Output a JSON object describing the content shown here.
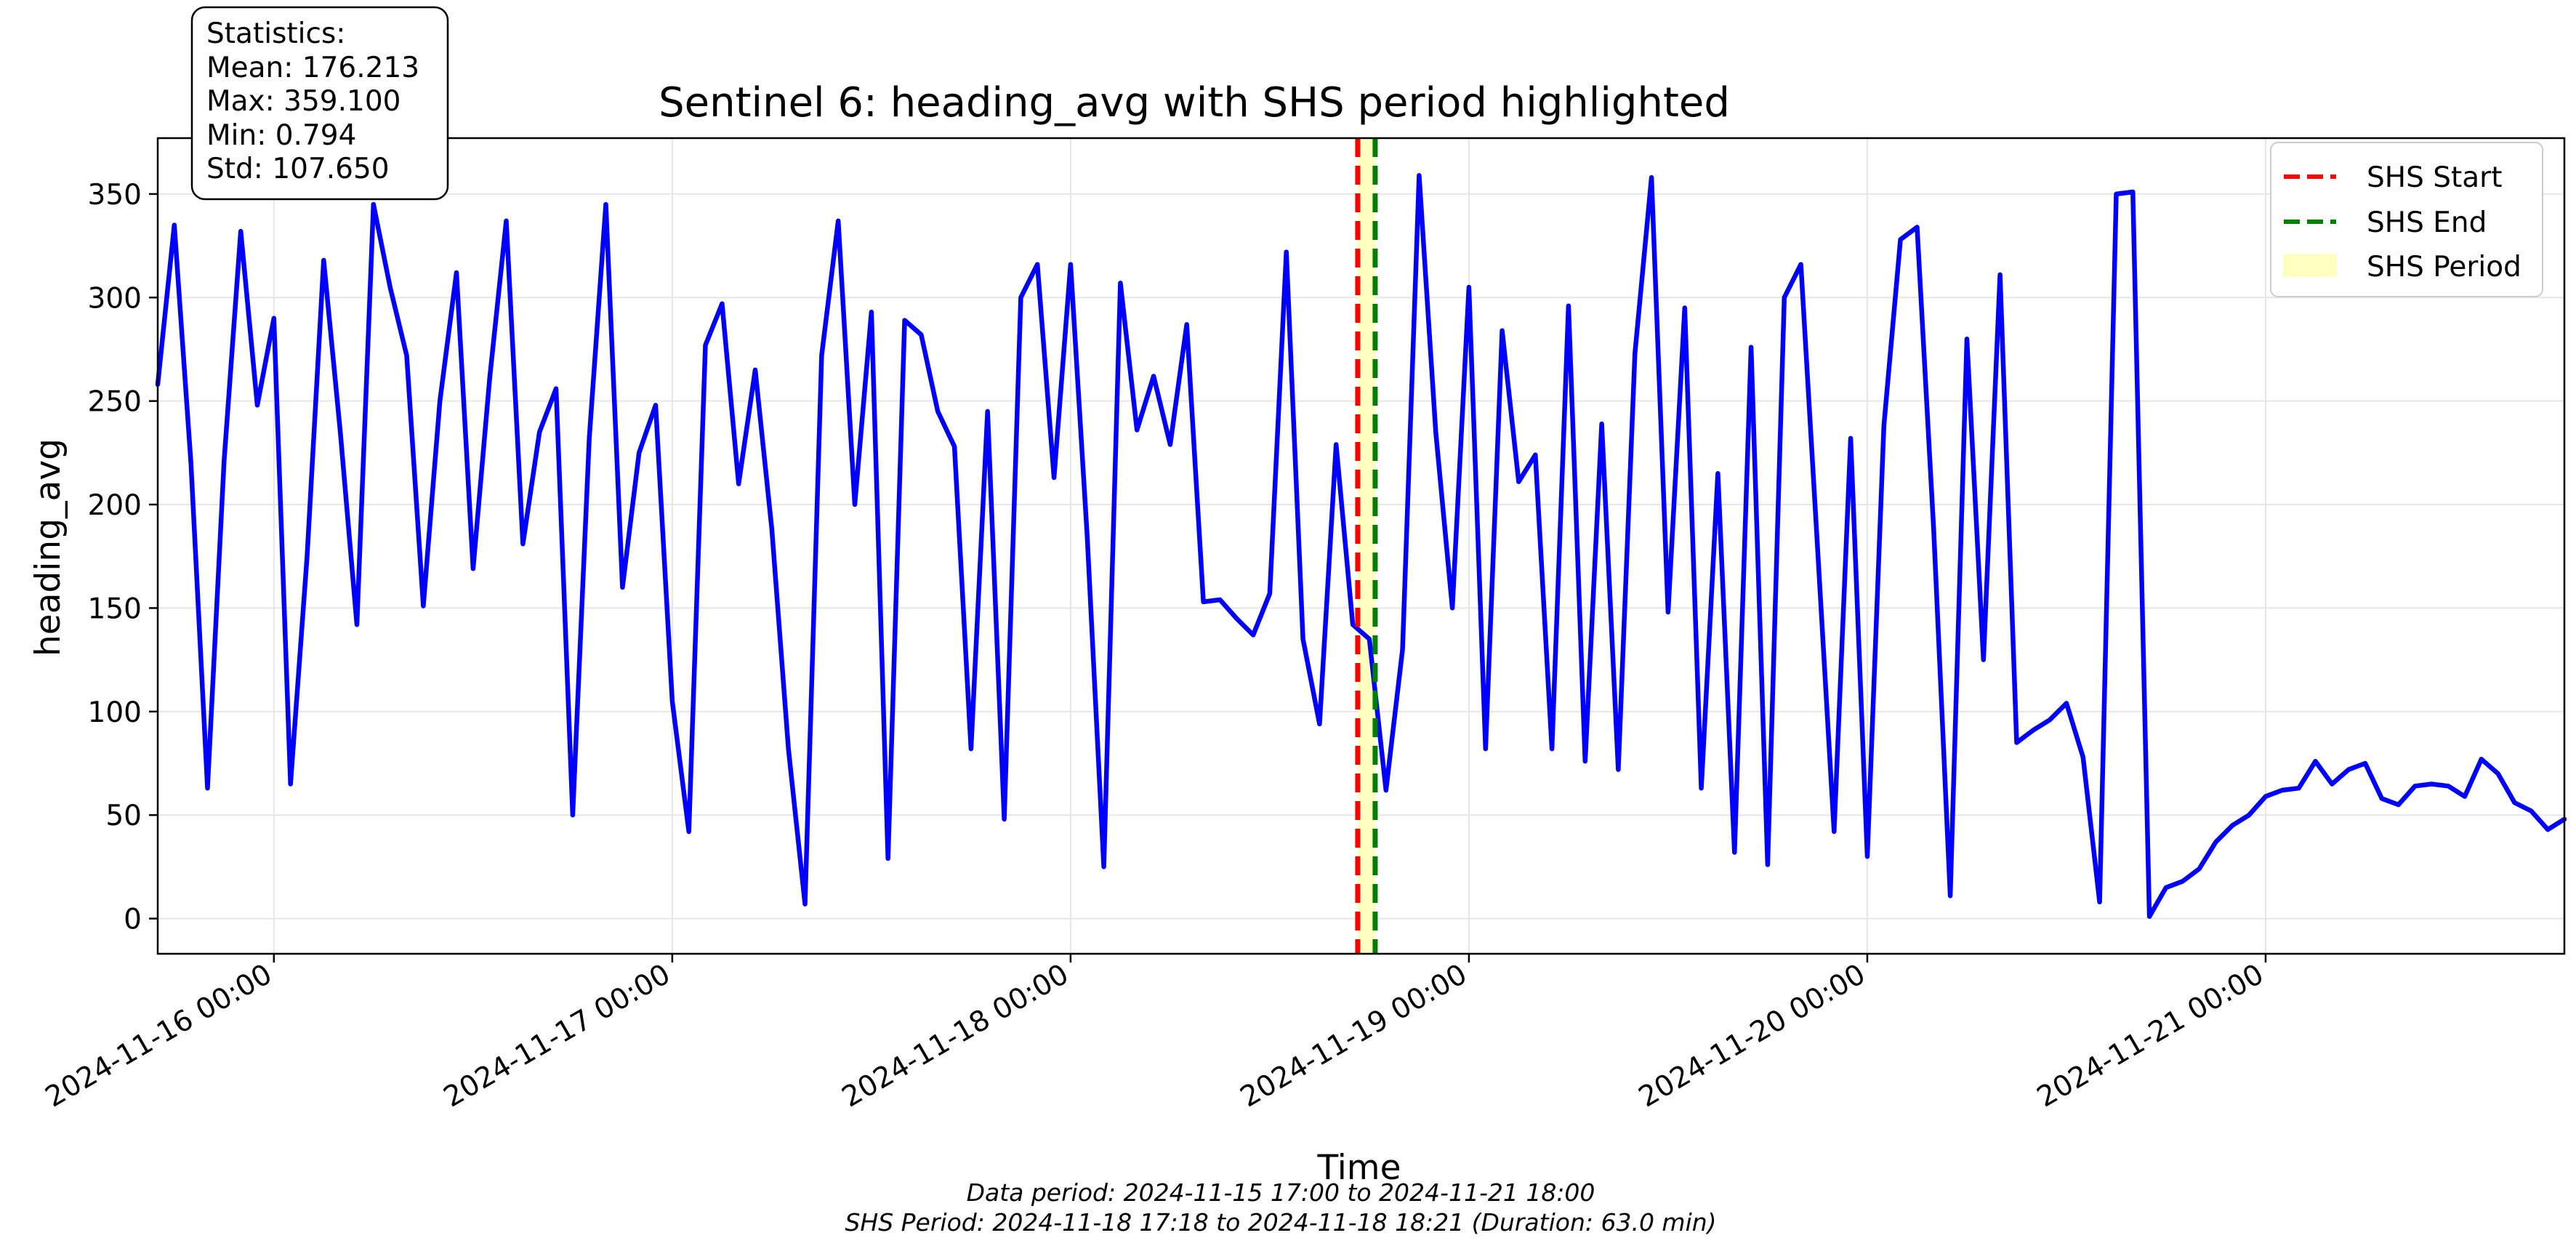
{
  "chart_data": {
    "type": "line",
    "title": "Sentinel 6: heading_avg with SHS period highlighted",
    "xlabel": "Time",
    "ylabel": "heading_avg",
    "xlim": [
      "2024-11-15 17:00",
      "2024-11-21 18:00"
    ],
    "ylim": [
      -17,
      377
    ],
    "grid": true,
    "legend_position": "top-right",
    "x_ticks": [
      "2024-11-16 00:00",
      "2024-11-17 00:00",
      "2024-11-18 00:00",
      "2024-11-19 00:00",
      "2024-11-20 00:00",
      "2024-11-21 00:00"
    ],
    "y_ticks": [
      0,
      50,
      100,
      150,
      200,
      250,
      300,
      350
    ],
    "series": [
      {
        "color": "#0000ff",
        "x": [
          "2024-11-15 17:00",
          "2024-11-15 18:00",
          "2024-11-15 19:00",
          "2024-11-15 20:00",
          "2024-11-15 21:00",
          "2024-11-15 22:00",
          "2024-11-15 23:00",
          "2024-11-16 00:00",
          "2024-11-16 01:00",
          "2024-11-16 02:00",
          "2024-11-16 03:00",
          "2024-11-16 04:00",
          "2024-11-16 05:00",
          "2024-11-16 06:00",
          "2024-11-16 07:00",
          "2024-11-16 08:00",
          "2024-11-16 09:00",
          "2024-11-16 10:00",
          "2024-11-16 11:00",
          "2024-11-16 12:00",
          "2024-11-16 13:00",
          "2024-11-16 14:00",
          "2024-11-16 15:00",
          "2024-11-16 16:00",
          "2024-11-16 17:00",
          "2024-11-16 18:00",
          "2024-11-16 19:00",
          "2024-11-16 20:00",
          "2024-11-16 21:00",
          "2024-11-16 22:00",
          "2024-11-16 23:00",
          "2024-11-17 00:00",
          "2024-11-17 01:00",
          "2024-11-17 02:00",
          "2024-11-17 03:00",
          "2024-11-17 04:00",
          "2024-11-17 05:00",
          "2024-11-17 06:00",
          "2024-11-17 07:00",
          "2024-11-17 08:00",
          "2024-11-17 09:00",
          "2024-11-17 10:00",
          "2024-11-17 11:00",
          "2024-11-17 12:00",
          "2024-11-17 13:00",
          "2024-11-17 14:00",
          "2024-11-17 15:00",
          "2024-11-17 16:00",
          "2024-11-17 17:00",
          "2024-11-17 18:00",
          "2024-11-17 19:00",
          "2024-11-17 20:00",
          "2024-11-17 21:00",
          "2024-11-17 22:00",
          "2024-11-17 23:00",
          "2024-11-18 00:00",
          "2024-11-18 01:00",
          "2024-11-18 02:00",
          "2024-11-18 03:00",
          "2024-11-18 04:00",
          "2024-11-18 05:00",
          "2024-11-18 06:00",
          "2024-11-18 07:00",
          "2024-11-18 08:00",
          "2024-11-18 09:00",
          "2024-11-18 10:00",
          "2024-11-18 11:00",
          "2024-11-18 12:00",
          "2024-11-18 13:00",
          "2024-11-18 14:00",
          "2024-11-18 15:00",
          "2024-11-18 16:00",
          "2024-11-18 17:00",
          "2024-11-18 18:00",
          "2024-11-18 19:00",
          "2024-11-18 20:00",
          "2024-11-18 21:00",
          "2024-11-18 22:00",
          "2024-11-18 23:00",
          "2024-11-19 00:00",
          "2024-11-19 01:00",
          "2024-11-19 02:00",
          "2024-11-19 03:00",
          "2024-11-19 04:00",
          "2024-11-19 05:00",
          "2024-11-19 06:00",
          "2024-11-19 07:00",
          "2024-11-19 08:00",
          "2024-11-19 09:00",
          "2024-11-19 10:00",
          "2024-11-19 11:00",
          "2024-11-19 12:00",
          "2024-11-19 13:00",
          "2024-11-19 14:00",
          "2024-11-19 15:00",
          "2024-11-19 16:00",
          "2024-11-19 17:00",
          "2024-11-19 18:00",
          "2024-11-19 19:00",
          "2024-11-19 20:00",
          "2024-11-19 21:00",
          "2024-11-19 22:00",
          "2024-11-19 23:00",
          "2024-11-20 00:00",
          "2024-11-20 01:00",
          "2024-11-20 02:00",
          "2024-11-20 03:00",
          "2024-11-20 04:00",
          "2024-11-20 05:00",
          "2024-11-20 06:00",
          "2024-11-20 07:00",
          "2024-11-20 08:00",
          "2024-11-20 09:00",
          "2024-11-20 10:00",
          "2024-11-20 11:00",
          "2024-11-20 12:00",
          "2024-11-20 13:00",
          "2024-11-20 14:00",
          "2024-11-20 15:00",
          "2024-11-20 16:00",
          "2024-11-20 17:00",
          "2024-11-20 18:00",
          "2024-11-20 19:00",
          "2024-11-20 20:00",
          "2024-11-20 21:00",
          "2024-11-20 22:00",
          "2024-11-20 23:00",
          "2024-11-21 00:00",
          "2024-11-21 01:00",
          "2024-11-21 02:00",
          "2024-11-21 03:00",
          "2024-11-21 04:00",
          "2024-11-21 05:00",
          "2024-11-21 06:00",
          "2024-11-21 07:00",
          "2024-11-21 08:00",
          "2024-11-21 09:00",
          "2024-11-21 10:00",
          "2024-11-21 11:00",
          "2024-11-21 12:00",
          "2024-11-21 13:00",
          "2024-11-21 14:00",
          "2024-11-21 15:00",
          "2024-11-21 16:00",
          "2024-11-21 17:00",
          "2024-11-21 18:00"
        ],
        "y": [
          258,
          335,
          220,
          63,
          221,
          332,
          248,
          290,
          65,
          175,
          318,
          235,
          142,
          345,
          305,
          272,
          151,
          250,
          312,
          169,
          261,
          337,
          181,
          235,
          256,
          50,
          232,
          345,
          160,
          225,
          248,
          105,
          42,
          277,
          297,
          210,
          265,
          188,
          82,
          7,
          272,
          337,
          200,
          293,
          29,
          289,
          282,
          245,
          228,
          82,
          245,
          48,
          300,
          316,
          213,
          316,
          185,
          25,
          307,
          236,
          262,
          229,
          287,
          153,
          154,
          145,
          137,
          157,
          322,
          135,
          94,
          229,
          142,
          135,
          62,
          130,
          359,
          235,
          150,
          305,
          82,
          284,
          211,
          224,
          82,
          296,
          76,
          239,
          72,
          273,
          358,
          148,
          295,
          63,
          215,
          32,
          276,
          26,
          300,
          316,
          180,
          42,
          232,
          30,
          238,
          328,
          334,
          188,
          11,
          280,
          125,
          311,
          85,
          91,
          96,
          104,
          78,
          8,
          350,
          351,
          1,
          15,
          18,
          24,
          37,
          45,
          50,
          59,
          62,
          63,
          76,
          65,
          72,
          75,
          58,
          55,
          64,
          65,
          64,
          59,
          77,
          70,
          56,
          52,
          43,
          48
        ]
      }
    ],
    "shs_period": {
      "start": "2024-11-18 17:18",
      "end": "2024-11-18 18:21"
    },
    "legend": [
      "SHS Start",
      "SHS End",
      "SHS Period"
    ],
    "stats_box": {
      "title": "Statistics:",
      "mean": "Mean: 176.213",
      "max": "Max: 359.100",
      "min": "Min: 0.794",
      "std": "Std: 107.650"
    },
    "footnote_1": "Data period: 2024-11-15 17:00 to 2024-11-21 18:00",
    "footnote_2": "SHS Period: 2024-11-18 17:18 to 2024-11-18 18:21 (Duration: 63.0 min)",
    "colors": {
      "line": "#0000ff",
      "shs_start": "#ff0000",
      "shs_end": "#008000",
      "shs_period": "#ffffc0",
      "grid": "#e6e6e6"
    }
  }
}
